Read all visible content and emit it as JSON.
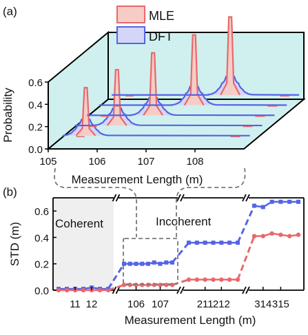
{
  "colors": {
    "mle": "#e8686b",
    "mle_fill": "#f6cdc6",
    "dft": "#5464e6",
    "dft_fill": "#d4d6f7",
    "floor": "#cff0ee",
    "coherent_bg": "#efefef"
  },
  "chart_data": [
    {
      "panel": "(a)",
      "type": "waterfall-3d-line",
      "xlabel": "Measurement Length (m)",
      "ylabel": "Probability",
      "x_ticks": [
        "105",
        "106",
        "107",
        "108"
      ],
      "y_ticks": [
        "0.0",
        "0.2",
        "0.4",
        "0.6"
      ],
      "ylim": [
        0,
        0.6
      ],
      "legend": [
        "MLE",
        "DFT"
      ],
      "series": [
        {
          "name": "MLE",
          "peak_x": [
            105.7,
            106.2,
            106.8,
            107.5,
            108.1
          ],
          "peak_height": [
            0.43,
            0.5,
            0.56,
            0.63,
            0.7
          ]
        },
        {
          "name": "DFT",
          "peak_x": [
            105.7,
            106.2,
            106.8,
            107.5,
            108.1
          ],
          "peak_height": [
            0.15,
            0.16,
            0.16,
            0.17,
            0.17
          ]
        }
      ]
    },
    {
      "panel": "(b)",
      "type": "line",
      "xlabel": "Measurement Length (m)",
      "ylabel": "STD (m)",
      "ylim": [
        0,
        0.7
      ],
      "y_ticks": [
        "0.0",
        "0.2",
        "0.4",
        "0.6"
      ],
      "region_labels": [
        "Coherent",
        "Incoherent"
      ],
      "segments": [
        {
          "x_ticks": [
            "11",
            "12"
          ],
          "x": [
            10,
            10.5,
            11,
            11.5,
            12,
            12.5,
            13
          ],
          "DFT": [
            0.01,
            0.01,
            0.01,
            0.01,
            0.02,
            0.01,
            0.01
          ],
          "MLE": [
            0.0,
            0.0,
            0.0,
            0.0,
            0.0,
            0.0,
            0.0
          ]
        },
        {
          "x_ticks": [
            "106",
            "107"
          ],
          "x": [
            105.5,
            105.75,
            106,
            106.25,
            106.5,
            106.75,
            107,
            107.25,
            107.5
          ],
          "DFT": [
            0.2,
            0.2,
            0.2,
            0.2,
            0.2,
            0.21,
            0.2,
            0.21,
            0.21
          ],
          "MLE": [
            0.04,
            0.04,
            0.04,
            0.04,
            0.04,
            0.04,
            0.04,
            0.04,
            0.04
          ]
        },
        {
          "x_ticks": [
            "211",
            "212"
          ],
          "x": [
            210,
            210.5,
            211,
            211.5,
            212,
            212.5,
            213
          ],
          "DFT": [
            0.36,
            0.36,
            0.36,
            0.36,
            0.36,
            0.36,
            0.36
          ],
          "MLE": [
            0.08,
            0.08,
            0.08,
            0.08,
            0.08,
            0.08,
            0.08
          ]
        },
        {
          "x_ticks": [
            "314",
            "315"
          ],
          "x": [
            313.5,
            314,
            314.5,
            315,
            315.5,
            316
          ],
          "DFT": [
            0.64,
            0.63,
            0.67,
            0.67,
            0.67,
            0.67
          ],
          "MLE": [
            0.41,
            0.41,
            0.43,
            0.42,
            0.41,
            0.42
          ]
        }
      ],
      "series": [
        {
          "name": "DFT",
          "color_key": "dft"
        },
        {
          "name": "MLE",
          "color_key": "mle"
        }
      ]
    }
  ]
}
